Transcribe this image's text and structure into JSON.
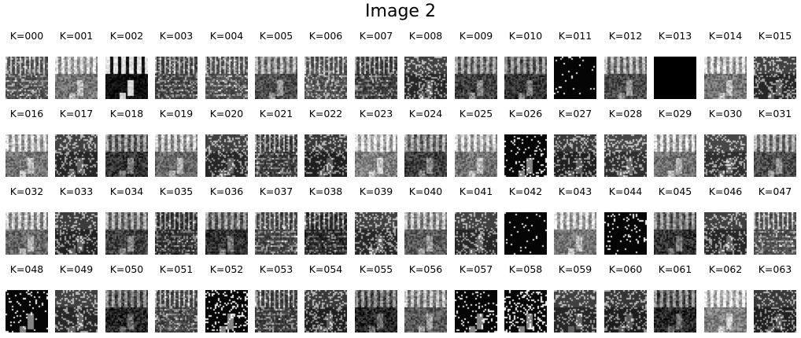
{
  "title": "Image 2",
  "kernels": [
    {
      "label": "K=000",
      "brightness": 0.3,
      "style": "stripes"
    },
    {
      "label": "K=001",
      "brightness": 0.55,
      "style": "scene"
    },
    {
      "label": "K=002",
      "brightness": 0.35,
      "style": "inverted"
    },
    {
      "label": "K=003",
      "brightness": 0.25,
      "style": "stripes"
    },
    {
      "label": "K=004",
      "brightness": 0.3,
      "style": "stripes"
    },
    {
      "label": "K=005",
      "brightness": 0.4,
      "style": "scene"
    },
    {
      "label": "K=006",
      "brightness": 0.3,
      "style": "stripes"
    },
    {
      "label": "K=007",
      "brightness": 0.22,
      "style": "stripes"
    },
    {
      "label": "K=008",
      "brightness": 0.25,
      "style": "speckle"
    },
    {
      "label": "K=009",
      "brightness": 0.35,
      "style": "scene"
    },
    {
      "label": "K=010",
      "brightness": 0.3,
      "style": "scene"
    },
    {
      "label": "K=011",
      "brightness": 0.05,
      "style": "sparse"
    },
    {
      "label": "K=012",
      "brightness": 0.4,
      "style": "scene"
    },
    {
      "label": "K=013",
      "brightness": 0.0,
      "style": "black"
    },
    {
      "label": "K=014",
      "brightness": 0.55,
      "style": "scene"
    },
    {
      "label": "K=015",
      "brightness": 0.25,
      "style": "speckle"
    },
    {
      "label": "K=016",
      "brightness": 0.55,
      "style": "scene"
    },
    {
      "label": "K=017",
      "brightness": 0.25,
      "style": "speckle"
    },
    {
      "label": "K=018",
      "brightness": 0.3,
      "style": "scene"
    },
    {
      "label": "K=019",
      "brightness": 0.5,
      "style": "scene"
    },
    {
      "label": "K=020",
      "brightness": 0.25,
      "style": "speckle"
    },
    {
      "label": "K=021",
      "brightness": 0.22,
      "style": "stripes"
    },
    {
      "label": "K=022",
      "brightness": 0.2,
      "style": "speckle"
    },
    {
      "label": "K=023",
      "brightness": 0.6,
      "style": "scene"
    },
    {
      "label": "K=024",
      "brightness": 0.35,
      "style": "scene"
    },
    {
      "label": "K=025",
      "brightness": 0.55,
      "style": "scene"
    },
    {
      "label": "K=026",
      "brightness": 0.15,
      "style": "sparse"
    },
    {
      "label": "K=027",
      "brightness": 0.2,
      "style": "speckle"
    },
    {
      "label": "K=028",
      "brightness": 0.3,
      "style": "speckle"
    },
    {
      "label": "K=029",
      "brightness": 0.55,
      "style": "scene"
    },
    {
      "label": "K=030",
      "brightness": 0.3,
      "style": "speckle"
    },
    {
      "label": "K=031",
      "brightness": 0.4,
      "style": "scene"
    },
    {
      "label": "K=032",
      "brightness": 0.5,
      "style": "scene"
    },
    {
      "label": "K=033",
      "brightness": 0.22,
      "style": "speckle"
    },
    {
      "label": "K=034",
      "brightness": 0.35,
      "style": "scene"
    },
    {
      "label": "K=035",
      "brightness": 0.18,
      "style": "stripes"
    },
    {
      "label": "K=036",
      "brightness": 0.3,
      "style": "scene"
    },
    {
      "label": "K=037",
      "brightness": 0.25,
      "style": "stripes"
    },
    {
      "label": "K=038",
      "brightness": 0.15,
      "style": "stripes"
    },
    {
      "label": "K=039",
      "brightness": 0.25,
      "style": "speckle"
    },
    {
      "label": "K=040",
      "brightness": 0.45,
      "style": "scene"
    },
    {
      "label": "K=041",
      "brightness": 0.25,
      "style": "speckle"
    },
    {
      "label": "K=042",
      "brightness": 0.04,
      "style": "sparse"
    },
    {
      "label": "K=043",
      "brightness": 0.55,
      "style": "scene"
    },
    {
      "label": "K=044",
      "brightness": 0.1,
      "style": "sparse"
    },
    {
      "label": "K=045",
      "brightness": 0.3,
      "style": "scene"
    },
    {
      "label": "K=046",
      "brightness": 0.25,
      "style": "speckle"
    },
    {
      "label": "K=047",
      "brightness": 0.3,
      "style": "stripes"
    },
    {
      "label": "K=048",
      "brightness": 0.12,
      "style": "sparse"
    },
    {
      "label": "K=049",
      "brightness": 0.25,
      "style": "speckle"
    },
    {
      "label": "K=050",
      "brightness": 0.25,
      "style": "scene"
    },
    {
      "label": "K=051",
      "brightness": 0.25,
      "style": "stripes"
    },
    {
      "label": "K=052",
      "brightness": 0.2,
      "style": "sparse"
    },
    {
      "label": "K=053",
      "brightness": 0.22,
      "style": "stripes"
    },
    {
      "label": "K=054",
      "brightness": 0.2,
      "style": "speckle"
    },
    {
      "label": "K=055",
      "brightness": 0.25,
      "style": "scene"
    },
    {
      "label": "K=056",
      "brightness": 0.45,
      "style": "scene"
    },
    {
      "label": "K=057",
      "brightness": 0.15,
      "style": "sparse"
    },
    {
      "label": "K=058",
      "brightness": 0.25,
      "style": "sparse"
    },
    {
      "label": "K=059",
      "brightness": 0.25,
      "style": "speckle"
    },
    {
      "label": "K=060",
      "brightness": 0.18,
      "style": "speckle"
    },
    {
      "label": "K=061",
      "brightness": 0.25,
      "style": "scene"
    },
    {
      "label": "K=062",
      "brightness": 0.6,
      "style": "scene"
    },
    {
      "label": "K=063",
      "brightness": 0.2,
      "style": "speckle"
    }
  ]
}
